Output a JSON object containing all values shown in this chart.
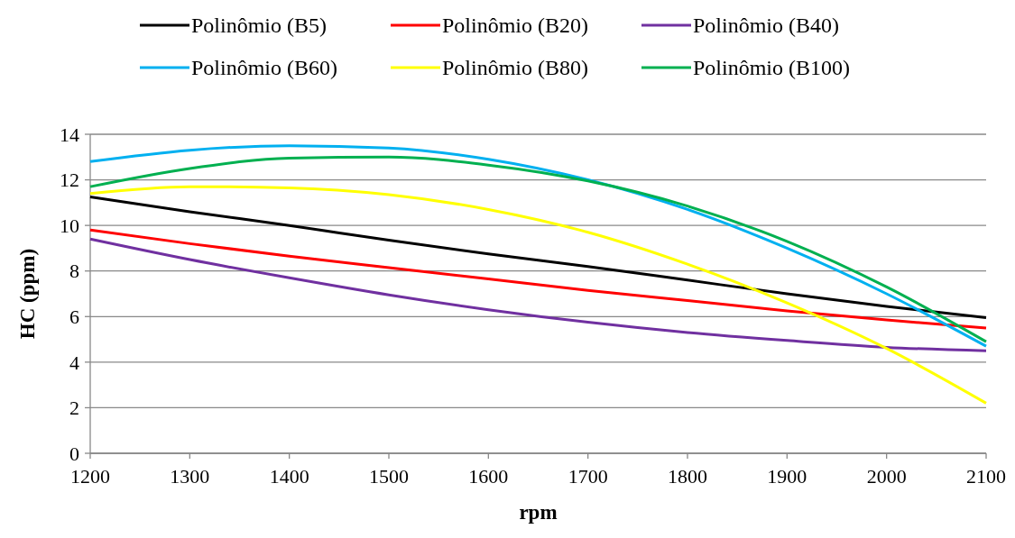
{
  "chart_data": {
    "type": "line",
    "xlabel": "rpm",
    "ylabel": "HC  (ppm)",
    "x": [
      1200,
      1300,
      1400,
      1500,
      1600,
      1700,
      1800,
      1900,
      2000,
      2100
    ],
    "series": [
      {
        "name": "Polinômio (B5)",
        "color": "#000000",
        "values": [
          11.25,
          10.6,
          10.0,
          9.35,
          8.75,
          8.2,
          7.6,
          7.0,
          6.45,
          5.95
        ]
      },
      {
        "name": "Polinômio (B20)",
        "color": "#ff0000",
        "values": [
          9.8,
          9.2,
          8.65,
          8.15,
          7.65,
          7.15,
          6.7,
          6.25,
          5.85,
          5.5
        ]
      },
      {
        "name": "Polinômio (B40)",
        "color": "#7030a0",
        "values": [
          9.4,
          8.5,
          7.7,
          6.95,
          6.3,
          5.75,
          5.3,
          4.95,
          4.65,
          4.5
        ]
      },
      {
        "name": "Polinômio (B60)",
        "color": "#00b0f0",
        "values": [
          12.8,
          13.3,
          13.5,
          13.4,
          12.9,
          12.0,
          10.7,
          9.0,
          7.0,
          4.7
        ]
      },
      {
        "name": "Polinômio (B80)",
        "color": "#ffff00",
        "values": [
          11.4,
          11.7,
          11.65,
          11.35,
          10.7,
          9.7,
          8.3,
          6.6,
          4.6,
          2.2
        ]
      },
      {
        "name": "Polinômio (B100)",
        "color": "#00b050",
        "values": [
          11.7,
          12.5,
          12.95,
          13.0,
          12.65,
          11.95,
          10.85,
          9.3,
          7.3,
          4.9
        ]
      }
    ],
    "xlim": [
      1200,
      2100
    ],
    "xticks": [
      1200,
      1300,
      1400,
      1500,
      1600,
      1700,
      1800,
      1900,
      2000,
      2100
    ],
    "ylim": [
      0,
      14
    ],
    "yticks": [
      0,
      2,
      4,
      6,
      8,
      10,
      12,
      14
    ],
    "grid": "y",
    "legend": "top",
    "marker": "none",
    "line_style": "solid"
  }
}
